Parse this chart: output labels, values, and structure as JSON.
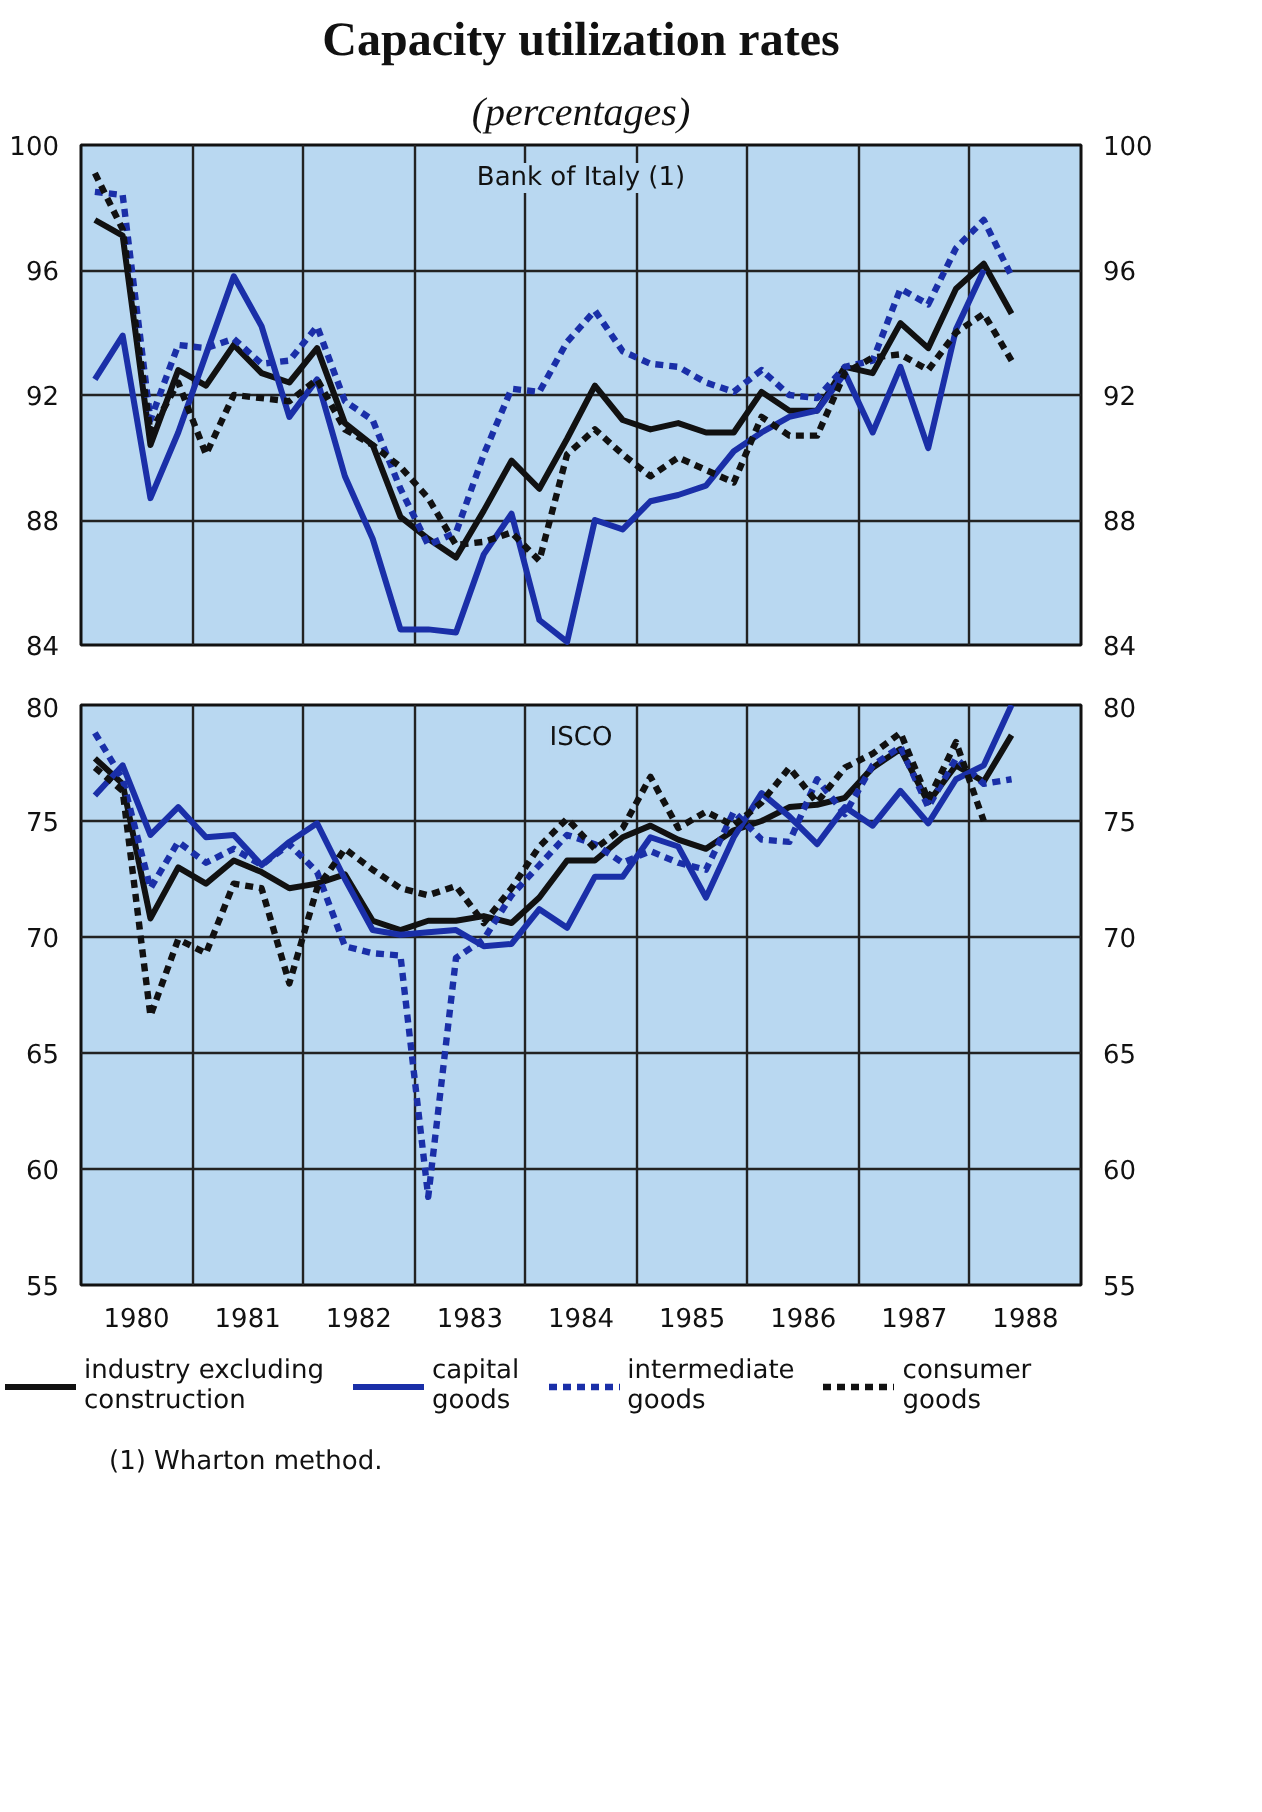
{
  "chart_data": [
    {
      "type": "line",
      "title": "Capacity utilization rates",
      "subtitle": "(percentages)",
      "annotations": [
        "Bank of Italy (1)"
      ],
      "x": [
        1980.125,
        1980.375,
        1980.625,
        1980.875,
        1981.125,
        1981.375,
        1981.625,
        1981.875,
        1982.125,
        1982.375,
        1982.625,
        1982.875,
        1983.125,
        1983.375,
        1983.625,
        1983.875,
        1984.125,
        1984.375,
        1984.625,
        1984.875,
        1985.125,
        1985.375,
        1985.625,
        1985.875,
        1986.125,
        1986.375,
        1986.625,
        1986.875,
        1987.125,
        1987.375,
        1987.625,
        1987.875,
        1988.125,
        1988.375
      ],
      "series": [
        {
          "color": "#111111",
          "line_style": "solid",
          "values": [
            97.6,
            97.1,
            90.4,
            92.8,
            92.3,
            93.6,
            92.7,
            92.4,
            93.5,
            91.1,
            90.4,
            88.1,
            87.4,
            86.8,
            88.3,
            89.9,
            89.0,
            90.6,
            92.3,
            91.2,
            90.9,
            91.1,
            90.8,
            90.8,
            92.1,
            91.5,
            91.5,
            92.9,
            92.7,
            94.3,
            93.5,
            95.4,
            96.2,
            94.6
          ]
        },
        {
          "color": "#1a2fa8",
          "line_style": "solid",
          "values": [
            92.5,
            93.9,
            88.7,
            90.8,
            93.3,
            95.8,
            94.2,
            91.3,
            92.5,
            89.4,
            87.4,
            84.5,
            84.5,
            84.4,
            86.9,
            88.2,
            84.8,
            84.1,
            88.0,
            87.7,
            88.6,
            88.8,
            89.1,
            90.2,
            90.8,
            91.3,
            91.5,
            92.7,
            90.8,
            92.9,
            90.3,
            94.1,
            96.0,
            null
          ]
        },
        {
          "color": "#1a2fa8",
          "line_style": "dashed",
          "values": [
            98.5,
            98.4,
            91.2,
            93.6,
            93.5,
            93.8,
            93.0,
            93.1,
            94.2,
            91.8,
            91.2,
            89.0,
            87.2,
            87.6,
            90.1,
            92.2,
            92.1,
            93.7,
            94.7,
            93.4,
            93.0,
            92.9,
            92.4,
            92.1,
            92.8,
            92.0,
            91.9,
            92.9,
            93.1,
            95.4,
            94.9,
            96.7,
            97.6,
            95.8
          ]
        },
        {
          "color": "#111111",
          "line_style": "dashed",
          "values": [
            99.1,
            97.3,
            90.8,
            92.4,
            90.1,
            92.0,
            91.9,
            91.8,
            92.5,
            90.9,
            90.4,
            89.7,
            88.7,
            87.2,
            87.3,
            87.6,
            86.7,
            90.1,
            90.9,
            90.1,
            89.4,
            90.0,
            89.6,
            89.2,
            91.3,
            90.7,
            90.7,
            92.7,
            93.2,
            93.3,
            92.8,
            94.0,
            94.6,
            93.1
          ]
        }
      ],
      "xlim": [
        1980,
        1989
      ],
      "xticks": [
        {
          "value": 1980,
          "label": null
        },
        {
          "value": 1981,
          "label": null
        },
        {
          "value": 1982,
          "label": null
        },
        {
          "value": 1983,
          "label": null
        },
        {
          "value": 1984,
          "label": null
        },
        {
          "value": 1985,
          "label": null
        },
        {
          "value": 1986,
          "label": null
        },
        {
          "value": 1987,
          "label": null
        },
        {
          "value": 1988,
          "label": null
        },
        {
          "value": 1989,
          "label": null
        }
      ],
      "ylim": [
        84,
        100
      ],
      "yticks": [
        84,
        88,
        92,
        96,
        100
      ],
      "y2lim": [
        84,
        100
      ],
      "y2ticks": [
        84,
        88,
        92,
        96,
        100
      ],
      "tick_labels": "y",
      "grid": true,
      "legend": false
    },
    {
      "type": "line",
      "annotations": [
        "ISCO",
        "(1) Wharton method."
      ],
      "x": [
        1980.125,
        1980.375,
        1980.625,
        1980.875,
        1981.125,
        1981.375,
        1981.625,
        1981.875,
        1982.125,
        1982.375,
        1982.625,
        1982.875,
        1983.125,
        1983.375,
        1983.625,
        1983.875,
        1984.125,
        1984.375,
        1984.625,
        1984.875,
        1985.125,
        1985.375,
        1985.625,
        1985.875,
        1986.125,
        1986.375,
        1986.625,
        1986.875,
        1987.125,
        1987.375,
        1987.625,
        1987.875,
        1988.125,
        1988.375
      ],
      "series": [
        {
          "name": "industry excluding construction",
          "color": "#111111",
          "line_style": "solid",
          "values": [
            77.7,
            76.6,
            70.8,
            73.0,
            72.3,
            73.3,
            72.8,
            72.1,
            72.3,
            72.7,
            70.7,
            70.3,
            70.7,
            70.7,
            70.9,
            70.6,
            71.7,
            73.3,
            73.3,
            74.3,
            74.8,
            74.2,
            73.8,
            74.6,
            75.0,
            75.6,
            75.7,
            76.0,
            77.3,
            78.1,
            75.8,
            77.4,
            76.7,
            78.7
          ]
        },
        {
          "name": "capital goods",
          "color": "#1a2fa8",
          "line_style": "solid",
          "values": [
            76.1,
            77.4,
            74.4,
            75.6,
            74.3,
            74.4,
            73.1,
            74.1,
            74.9,
            72.5,
            70.3,
            70.1,
            70.2,
            70.3,
            69.6,
            69.7,
            71.2,
            70.4,
            72.6,
            72.6,
            74.3,
            73.9,
            71.7,
            74.3,
            76.2,
            75.2,
            74.0,
            75.6,
            74.8,
            76.3,
            74.9,
            76.8,
            77.4,
            80.0
          ]
        },
        {
          "name": "intermediate goods",
          "color": "#1a2fa8",
          "line_style": "dashed",
          "values": [
            78.8,
            76.8,
            72.1,
            74.1,
            73.2,
            73.8,
            73.1,
            74.0,
            72.8,
            69.6,
            69.3,
            69.2,
            58.8,
            69.1,
            69.9,
            71.8,
            73.1,
            74.4,
            74.0,
            73.2,
            73.7,
            73.2,
            72.9,
            75.4,
            74.2,
            74.1,
            76.8,
            75.3,
            77.4,
            78.2,
            75.6,
            77.7,
            76.6,
            76.8
          ]
        },
        {
          "name": "consumer goods",
          "color": "#111111",
          "line_style": "dashed",
          "values": [
            77.3,
            76.3,
            66.6,
            69.9,
            69.3,
            72.3,
            72.1,
            68.0,
            72.1,
            73.8,
            72.9,
            72.1,
            71.8,
            72.2,
            70.6,
            72.1,
            73.9,
            75.1,
            73.8,
            74.7,
            76.9,
            74.7,
            75.4,
            74.8,
            75.8,
            77.3,
            75.8,
            77.3,
            77.9,
            78.8,
            75.9,
            78.4,
            75.0,
            null
          ]
        }
      ],
      "xlim": [
        1980,
        1989
      ],
      "xticks": [
        {
          "value": 1980,
          "label": null
        },
        {
          "value": 1980.5,
          "label": "1980"
        },
        {
          "value": 1981,
          "label": null
        },
        {
          "value": 1981.5,
          "label": "1981"
        },
        {
          "value": 1982,
          "label": null
        },
        {
          "value": 1982.5,
          "label": "1982"
        },
        {
          "value": 1983,
          "label": null
        },
        {
          "value": 1983.5,
          "label": "1983"
        },
        {
          "value": 1984,
          "label": null
        },
        {
          "value": 1984.5,
          "label": "1984"
        },
        {
          "value": 1985,
          "label": null
        },
        {
          "value": 1985.5,
          "label": "1985"
        },
        {
          "value": 1986,
          "label": null
        },
        {
          "value": 1986.5,
          "label": "1986"
        },
        {
          "value": 1987,
          "label": null
        },
        {
          "value": 1987.5,
          "label": "1987"
        },
        {
          "value": 1988,
          "label": null
        },
        {
          "value": 1988.5,
          "label": "1988"
        },
        {
          "value": 1989,
          "label": null
        }
      ],
      "ylim": [
        55,
        80
      ],
      "yticks": [
        55,
        60,
        65,
        70,
        75,
        80
      ],
      "y2lim": [
        55,
        80
      ],
      "y2ticks": [
        55,
        60,
        65,
        70,
        75,
        80
      ],
      "grid": true,
      "legend": "bottom"
    }
  ]
}
